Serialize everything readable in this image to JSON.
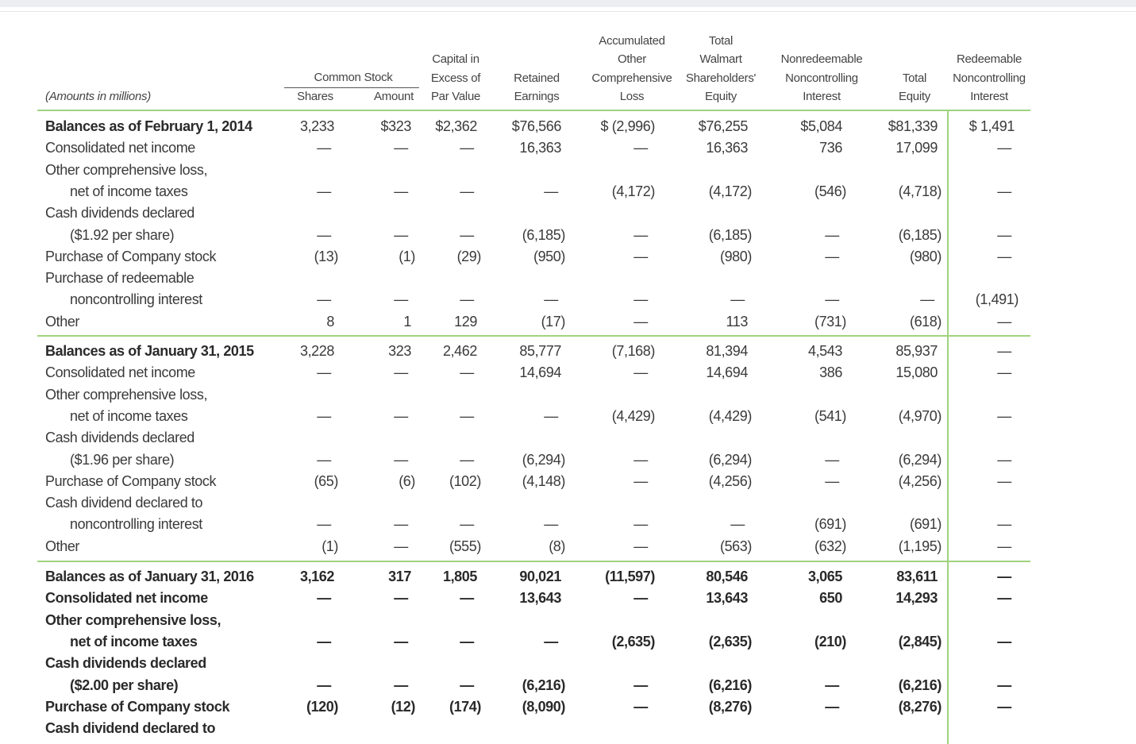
{
  "table": {
    "note": "(Amounts in millions)",
    "group_header": "Common Stock",
    "columns": [
      [
        "Shares"
      ],
      [
        "Amount"
      ],
      [
        "Capital in",
        "Excess of",
        "Par Value"
      ],
      [
        "Retained",
        "Earnings"
      ],
      [
        "Accumulated",
        "Other",
        "Comprehensive",
        "Loss"
      ],
      [
        "Total",
        "Walmart",
        "Shareholders'",
        "Equity"
      ],
      [
        "Nonredeemable",
        "Noncontrolling",
        "Interest"
      ],
      [
        "Total",
        "Equity"
      ],
      [
        "Redeemable",
        "Noncontrolling",
        "Interest"
      ]
    ],
    "sections": [
      [
        {
          "label": [
            "Balances as of February 1, 2014"
          ],
          "cells": [
            "3,233",
            "$323",
            "$2,362",
            "$76,566",
            "$ (2,996)",
            "$76,255",
            "$5,084",
            "$81,339",
            "$ 1,491"
          ]
        },
        {
          "label": [
            "Consolidated net income"
          ],
          "cells": [
            "—",
            "—",
            "—",
            "16,363",
            "—",
            "16,363",
            "736",
            "17,099",
            "—"
          ]
        },
        {
          "label": [
            "Other comprehensive loss,",
            "net of income taxes"
          ],
          "cells": [
            "—",
            "—",
            "—",
            "—",
            "(4,172)",
            "(4,172)",
            "(546)",
            "(4,718)",
            "—"
          ]
        },
        {
          "label": [
            "Cash dividends declared",
            "($1.92 per share)"
          ],
          "cells": [
            "—",
            "—",
            "—",
            "(6,185)",
            "—",
            "(6,185)",
            "—",
            "(6,185)",
            "—"
          ]
        },
        {
          "label": [
            "Purchase of Company stock"
          ],
          "cells": [
            "(13)",
            "(1)",
            "(29)",
            "(950)",
            "—",
            "(980)",
            "—",
            "(980)",
            "—"
          ]
        },
        {
          "label": [
            "Purchase of redeemable",
            "noncontrolling interest"
          ],
          "cells": [
            "—",
            "—",
            "—",
            "—",
            "—",
            "—",
            "—",
            "—",
            "(1,491)"
          ]
        },
        {
          "label": [
            "Other"
          ],
          "cells": [
            "8",
            "1",
            "129",
            "(17)",
            "—",
            "113",
            "(731)",
            "(618)",
            "—"
          ]
        }
      ],
      [
        {
          "label": [
            "Balances as of January 31, 2015"
          ],
          "cells": [
            "3,228",
            "323",
            "2,462",
            "85,777",
            "(7,168)",
            "81,394",
            "4,543",
            "85,937",
            "—"
          ]
        },
        {
          "label": [
            "Consolidated net income"
          ],
          "cells": [
            "—",
            "—",
            "—",
            "14,694",
            "—",
            "14,694",
            "386",
            "15,080",
            "—"
          ]
        },
        {
          "label": [
            "Other comprehensive loss,",
            "net of income taxes"
          ],
          "cells": [
            "—",
            "—",
            "—",
            "—",
            "(4,429)",
            "(4,429)",
            "(541)",
            "(4,970)",
            "—"
          ]
        },
        {
          "label": [
            "Cash dividends declared",
            "($1.96 per share)"
          ],
          "cells": [
            "—",
            "—",
            "—",
            "(6,294)",
            "—",
            "(6,294)",
            "—",
            "(6,294)",
            "—"
          ]
        },
        {
          "label": [
            "Purchase of Company stock"
          ],
          "cells": [
            "(65)",
            "(6)",
            "(102)",
            "(4,148)",
            "—",
            "(4,256)",
            "—",
            "(4,256)",
            "—"
          ]
        },
        {
          "label": [
            "Cash dividend declared to",
            "noncontrolling interest"
          ],
          "cells": [
            "—",
            "—",
            "—",
            "—",
            "—",
            "—",
            "(691)",
            "(691)",
            "—"
          ]
        },
        {
          "label": [
            "Other"
          ],
          "cells": [
            "(1)",
            "—",
            "(555)",
            "(8)",
            "—",
            "(563)",
            "(632)",
            "(1,195)",
            "—"
          ]
        }
      ],
      [
        {
          "label": [
            "Balances as of January 31, 2016"
          ],
          "cells": [
            "3,162",
            "317",
            "1,805",
            "90,021",
            "(11,597)",
            "80,546",
            "3,065",
            "83,611",
            "—"
          ]
        },
        {
          "label": [
            "Consolidated net income"
          ],
          "cells": [
            "—",
            "—",
            "—",
            "13,643",
            "—",
            "13,643",
            "650",
            "14,293",
            "—"
          ]
        },
        {
          "label": [
            "Other comprehensive loss,",
            "net of income taxes"
          ],
          "cells": [
            "—",
            "—",
            "—",
            "—",
            "(2,635)",
            "(2,635)",
            "(210)",
            "(2,845)",
            "—"
          ]
        },
        {
          "label": [
            "Cash dividends declared",
            "($2.00 per share)"
          ],
          "cells": [
            "—",
            "—",
            "—",
            "(6,216)",
            "—",
            "(6,216)",
            "—",
            "(6,216)",
            "—"
          ]
        },
        {
          "label": [
            "Purchase of Company stock"
          ],
          "cells": [
            "(120)",
            "(12)",
            "(174)",
            "(8,090)",
            "—",
            "(8,276)",
            "—",
            "(8,276)",
            "—"
          ]
        },
        {
          "label": [
            "Cash dividend declared to"
          ],
          "cells": []
        }
      ]
    ]
  }
}
